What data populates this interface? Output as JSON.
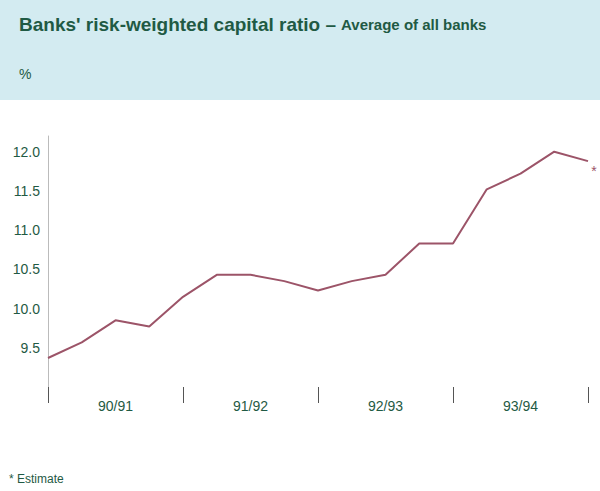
{
  "chart_data": {
    "type": "line",
    "title": "Banks' risk-weighted capital ratio –",
    "subtitle": "Average of all banks",
    "y_label": "%",
    "footnote": "* Estimate",
    "categories": [
      null,
      null,
      "90/91",
      null,
      null,
      null,
      "91/92",
      null,
      null,
      null,
      "92/93",
      null,
      null,
      null,
      "93/94",
      null,
      null
    ],
    "values": [
      9.37,
      9.57,
      9.85,
      9.77,
      10.15,
      10.43,
      10.43,
      10.35,
      10.23,
      10.35,
      10.43,
      10.83,
      10.83,
      11.52,
      11.72,
      12.0,
      11.88
    ],
    "annotations": [
      {
        "text": "*",
        "at": 16
      }
    ],
    "color": "#9c5468",
    "ylim": [
      9.0,
      12.2
    ],
    "yticks": [
      9.5,
      {
        "value": 10,
        "label": "10.0"
      },
      10.5,
      {
        "value": 11,
        "label": "11.0"
      },
      11.5,
      {
        "value": 12,
        "label": "12.0"
      }
    ],
    "grid": false
  }
}
